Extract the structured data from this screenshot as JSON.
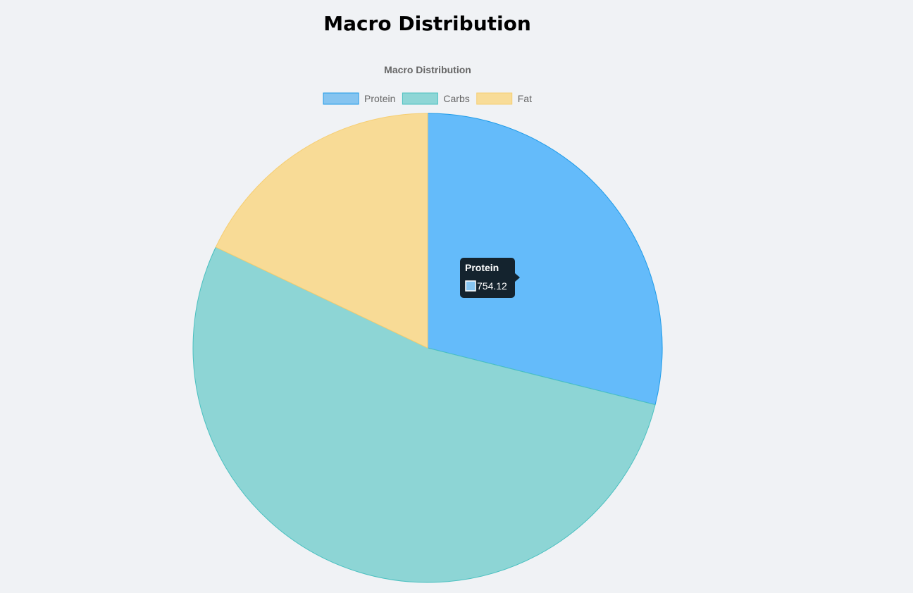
{
  "page": {
    "heading": "Macro Distribution"
  },
  "chart_data": {
    "type": "pie",
    "title": "Macro Distribution",
    "legend_position": "top",
    "categories": [
      "Protein",
      "Carbs",
      "Fat"
    ],
    "values": [
      754.12,
      1388,
      468
    ],
    "colors": {
      "fill": [
        "#64bbfa",
        "#8dd5d5",
        "#f8db96"
      ],
      "stroke": [
        "#1e9be8",
        "#4bc0c0",
        "#f6ce72"
      ],
      "legend_fill": [
        "#85c4f0",
        "#8ed6d6",
        "#f8dc98"
      ]
    },
    "tooltip": {
      "label": "Protein",
      "value": "754.12"
    }
  }
}
